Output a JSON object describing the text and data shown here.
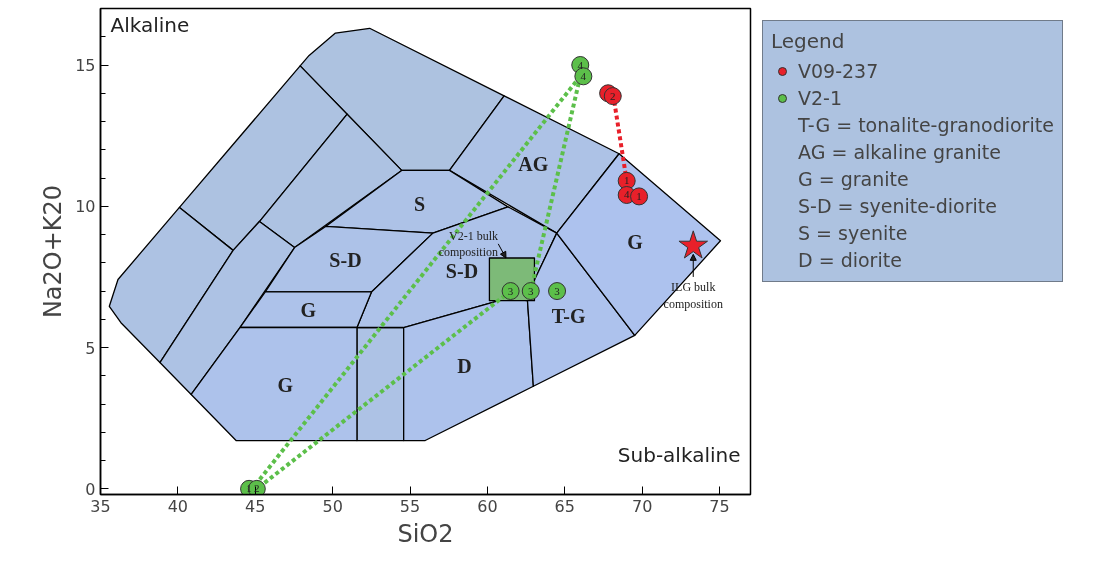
{
  "chart_data": {
    "type": "scatter",
    "xlabel": "SiO2",
    "ylabel": "Na2O+K20",
    "xlim": [
      35,
      77
    ],
    "ylim": [
      -0.2,
      17
    ],
    "xticks": [
      35,
      40,
      45,
      50,
      55,
      60,
      65,
      70,
      75
    ],
    "yticks": [
      0,
      5,
      10,
      15
    ],
    "grid": false,
    "legend": "right",
    "legend_title": "Legend",
    "series": [
      {
        "type": "area",
        "color": "#adc2e0",
        "x": [
          47.9,
          48.48,
          50.18,
          52.39,
          61.08,
          57.55,
          54.46
        ],
        "values": [
          14.97,
          15.34,
          16.13,
          16.3,
          13.91,
          11.27,
          11.27
        ]
      },
      {
        "type": "area",
        "color": "#adc2e1",
        "x": [
          40.1,
          47.9,
          50.94,
          45.27,
          43.57
        ],
        "values": [
          9.96,
          14.97,
          13.26,
          9.46,
          8.44
        ]
      },
      {
        "type": "area",
        "color": "#adc2e2",
        "x": [
          50.94,
          54.46,
          47.54,
          45.27
        ],
        "values": [
          13.26,
          11.27,
          8.54,
          9.46
        ]
      },
      {
        "type": "area",
        "color": "#adc2e3",
        "x": [
          35.57,
          36.13,
          40.1,
          43.57,
          38.84,
          36.32
        ],
        "values": [
          6.46,
          7.41,
          9.96,
          8.44,
          4.47,
          5.88
        ]
      },
      {
        "type": "area",
        "color": "#adc2e4",
        "x": [
          43.57,
          45.27,
          47.54,
          44.01,
          40.86,
          38.84
        ],
        "values": [
          8.44,
          9.46,
          8.54,
          5.71,
          3.34,
          4.47
        ]
      },
      {
        "type": "area",
        "color": "#adc2e5",
        "x": [
          51.57,
          54.59,
          54.59,
          51.57
        ],
        "values": [
          5.71,
          5.71,
          1.71,
          1.71
        ]
      },
      {
        "type": "area",
        "name": "AG",
        "color": "#adc2e6",
        "x": [
          57.55,
          61.08,
          68.51,
          64.48
        ],
        "values": [
          11.27,
          13.91,
          11.86,
          9.05
        ]
      },
      {
        "type": "area",
        "name": "S",
        "color": "#adc2e7",
        "x": [
          54.46,
          57.55,
          61.33,
          56.48,
          49.55
        ],
        "values": [
          11.27,
          11.27,
          9.98,
          9.05,
          9.29
        ]
      },
      {
        "type": "area",
        "name": "S-D",
        "color": "#adc2e8",
        "x": [
          49.55,
          56.48,
          52.51,
          45.65,
          47.54
        ],
        "values": [
          9.29,
          9.05,
          6.97,
          6.97,
          8.54
        ]
      },
      {
        "type": "area",
        "name": "S-D",
        "color": "#adc2e9",
        "x": [
          56.48,
          61.33,
          64.48,
          62.91,
          62.59,
          61.2,
          54.59,
          51.57,
          52.51
        ],
        "values": [
          9.05,
          9.98,
          9.05,
          7.24,
          6.66,
          6.73,
          5.71,
          5.71,
          6.97
        ]
      },
      {
        "type": "area",
        "name": "G",
        "color": "#adc2ea",
        "x": [
          45.65,
          52.51,
          51.57,
          44.01
        ],
        "values": [
          6.97,
          6.97,
          5.71,
          5.71
        ]
      },
      {
        "type": "area",
        "name": "G",
        "color": "#adc2eb",
        "x": [
          44.01,
          51.57,
          51.57,
          43.76,
          40.86
        ],
        "values": [
          5.71,
          5.71,
          1.71,
          1.71,
          3.34
        ]
      },
      {
        "type": "area",
        "name": "D",
        "color": "#adc2ec",
        "x": [
          54.59,
          61.2,
          62.59,
          62.97,
          55.98,
          54.59
        ],
        "values": [
          5.71,
          6.73,
          6.66,
          3.63,
          1.71,
          1.71
        ]
      },
      {
        "type": "area",
        "name": "T-G",
        "color": "#adc2ed",
        "x": [
          64.48,
          69.52,
          62.97,
          62.59,
          62.91
        ],
        "values": [
          9.05,
          5.43,
          3.63,
          6.66,
          7.24
        ]
      },
      {
        "type": "area",
        "name": "G",
        "color": "#adc2ee",
        "x": [
          68.51,
          75.06,
          69.52,
          64.48
        ],
        "values": [
          11.86,
          8.78,
          5.43,
          9.05
        ]
      },
      {
        "type": "area",
        "color": "#7dba78",
        "x": [
          60.13,
          63.04,
          63.04,
          60.13
        ],
        "values": [
          8.17,
          8.17,
          6.66,
          6.66
        ]
      },
      {
        "type": "line",
        "color": "#5cbf4a",
        "line_style": "dashed",
        "x": [
          66.0,
          44.8
        ],
        "values": [
          14.6,
          0
        ]
      },
      {
        "type": "line",
        "color": "#5cbf4a",
        "line_style": "dashed",
        "x": [
          66.0,
          62.8
        ],
        "values": [
          14.6,
          7.0
        ]
      },
      {
        "type": "line",
        "color": "#5cbf4a",
        "line_style": "dashed",
        "x": [
          61.5,
          45.1
        ],
        "values": [
          7.0,
          0
        ]
      },
      {
        "type": "line",
        "color": "#e8202a",
        "line_style": "dashed",
        "x": [
          68.2,
          69.0
        ],
        "values": [
          13.7,
          10.9
        ]
      },
      {
        "name": "V09-237",
        "color": "#e8202a",
        "marker": "circle",
        "x": [
          67.8,
          68.1,
          69.0,
          69.0,
          69.8
        ],
        "values": [
          14.0,
          13.9,
          10.9,
          10.4,
          10.35
        ]
      },
      {
        "name": "V2-1",
        "color": "#5cbf4a",
        "marker": "circle",
        "x": [
          66.0,
          66.2,
          61.5,
          62.8,
          64.5,
          44.6,
          45.1
        ],
        "values": [
          15.0,
          14.6,
          7.0,
          7.0,
          7.0,
          0,
          0
        ]
      },
      {
        "color": "#e8202a",
        "marker": "star",
        "x": [
          73.3
        ],
        "values": [
          8.6
        ]
      }
    ],
    "annotations": [
      "Alkaline",
      "Sub-alkaline",
      {
        "text": "2",
        "x": 68.1,
        "y": 13.9
      },
      {
        "text": "1",
        "x": 69.0,
        "y": 10.9
      },
      {
        "text": "4",
        "x": 69.0,
        "y": 10.4
      },
      {
        "text": "1",
        "x": 69.8,
        "y": 10.35
      },
      {
        "text": "4",
        "x": 66.0,
        "y": 15.0
      },
      {
        "text": "4",
        "x": 66.2,
        "y": 14.6
      },
      {
        "text": "3",
        "x": 61.5,
        "y": 7.0
      },
      {
        "text": "3",
        "x": 62.8,
        "y": 7.0
      },
      {
        "text": "3",
        "x": 64.5,
        "y": 7.0
      },
      {
        "text": "1",
        "x": 44.6,
        "y": 0
      },
      {
        "text": "2",
        "x": 45.1,
        "y": 0
      },
      {
        "text": "V2-1 bulk composition",
        "x": 61.2,
        "y": 8.17
      },
      {
        "text": "ILG bulk composition",
        "x": 73.3,
        "y": 8.6
      },
      "T-G = tonalite-granodiorite",
      "AG = alkaline granite",
      "G = granite",
      "S-D = syenite-diorite",
      "S = syenite",
      "D = diorite"
    ]
  }
}
